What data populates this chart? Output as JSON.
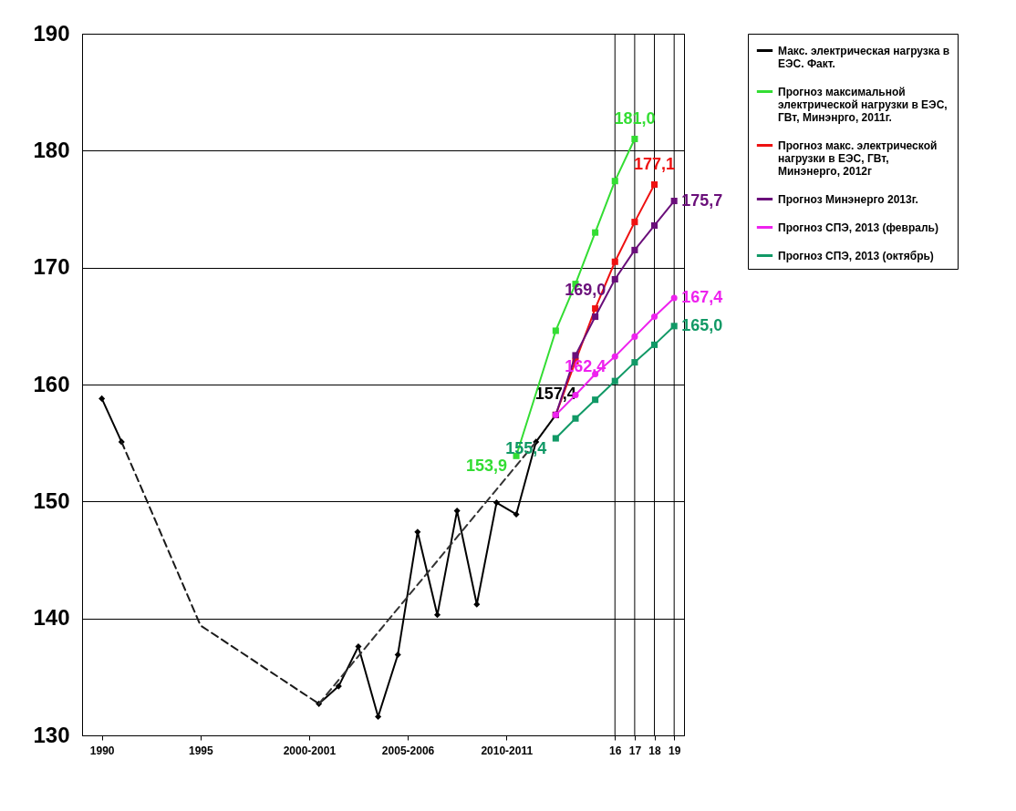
{
  "chart_data": {
    "type": "line",
    "xlim": [
      1989,
      2019.5
    ],
    "ylim": [
      130,
      190
    ],
    "xticks": [
      1990,
      1995,
      {
        "value": 2000.5,
        "label": "2000-2001"
      },
      {
        "value": 2005.5,
        "label": "2005-2006"
      },
      {
        "value": 2010.5,
        "label": "2010-2011"
      },
      {
        "value": 2016,
        "label": "16"
      },
      {
        "value": 2017,
        "label": "17"
      },
      {
        "value": 2018,
        "label": "18"
      },
      {
        "value": 2019,
        "label": "19"
      }
    ],
    "yticks": [
      130,
      140,
      150,
      160,
      170,
      180,
      190
    ],
    "grid": "y",
    "legend": "right",
    "ref_lines": [
      {
        "axis": "x",
        "value": 2016,
        "color": "#000000"
      },
      {
        "axis": "x",
        "value": 2017,
        "color": "#000000"
      },
      {
        "axis": "x",
        "value": 2018,
        "color": "#000000"
      },
      {
        "axis": "x",
        "value": 2019,
        "color": "#000000"
      }
    ],
    "series": [
      {
        "name": "Макс. электрическая нагрузка в ЕЭС. Факт.",
        "color": "#000000",
        "marker": "diamond",
        "line_style": "solid",
        "x": [
          1990,
          1991,
          1995,
          2001,
          2002,
          2003,
          2004,
          2005,
          2006,
          2007,
          2008,
          2009,
          2010,
          2011,
          2012,
          2013
        ],
        "values": [
          158.8,
          155.1,
          null,
          132.7,
          134.2,
          137.6,
          131.6,
          136.9,
          147.4,
          140.3,
          149.2,
          141.2,
          149.9,
          148.9,
          155.1,
          157.4
        ],
        "value_labels": [
          null,
          null,
          null,
          null,
          null,
          null,
          null,
          null,
          null,
          null,
          null,
          null,
          null,
          null,
          null,
          "157,4"
        ]
      },
      {
        "color": "#1a1a1a",
        "marker": "none",
        "line_style": "dashed",
        "x": [
          1991,
          1995,
          2001
        ],
        "values": [
          155.1,
          139.4,
          132.7
        ]
      },
      {
        "color": "#333333",
        "marker": "none",
        "line_style": "dashed",
        "x": [
          2001,
          2012
        ],
        "values": [
          132.7,
          155.1
        ]
      },
      {
        "name": "Прогноз максимальной электрической нагрузки в ЕЭС, ГВт, Минэнрго, 2011г.",
        "color": "#33dd33",
        "marker": "square",
        "line_style": "solid",
        "x": [
          2011,
          2013,
          2014,
          2015,
          2016,
          2017
        ],
        "values": [
          153.9,
          164.6,
          168.6,
          173.0,
          177.4,
          181.0
        ],
        "value_labels": [
          "153,9",
          null,
          null,
          null,
          null,
          "181,0"
        ]
      },
      {
        "name": "Прогноз макс. электрической нагрузки в ЕЭС, ГВт, Минэнерго, 2012г",
        "color": "#ee1111",
        "marker": "square",
        "line_style": "solid",
        "x": [
          2013,
          2014,
          2015,
          2016,
          2017,
          2018
        ],
        "values": [
          157.4,
          162.0,
          166.5,
          170.5,
          173.9,
          177.1
        ],
        "value_labels": [
          null,
          null,
          null,
          null,
          null,
          "177,1"
        ]
      },
      {
        "name": "Прогноз Минэнерго 2013г.",
        "color": "#6a0f7a",
        "marker": "square",
        "line_style": "solid",
        "x": [
          2013,
          2014,
          2015,
          2016,
          2017,
          2018,
          2019
        ],
        "values": [
          157.4,
          162.5,
          165.8,
          169.0,
          171.5,
          173.6,
          175.7
        ],
        "value_labels": [
          null,
          null,
          null,
          "169,0",
          null,
          null,
          "175,7"
        ]
      },
      {
        "name": "Прогноз СПЭ, 2013 (февраль)",
        "color": "#ee22ee",
        "marker": "circle",
        "line_style": "solid",
        "x": [
          2013,
          2014,
          2015,
          2016,
          2017,
          2018,
          2019
        ],
        "values": [
          157.4,
          159.1,
          160.9,
          162.4,
          164.1,
          165.8,
          167.4
        ],
        "value_labels": [
          null,
          null,
          null,
          "162,4",
          null,
          null,
          "167,4"
        ]
      },
      {
        "name": "Прогноз СПЭ, 2013 (октябрь)",
        "color": "#119966",
        "marker": "square",
        "line_style": "solid",
        "x": [
          2013,
          2014,
          2015,
          2016,
          2017,
          2018,
          2019
        ],
        "values": [
          155.4,
          157.1,
          158.7,
          160.3,
          161.9,
          163.4,
          165.0
        ],
        "value_labels": [
          "155,4",
          null,
          null,
          null,
          null,
          null,
          "165,0"
        ]
      }
    ]
  }
}
